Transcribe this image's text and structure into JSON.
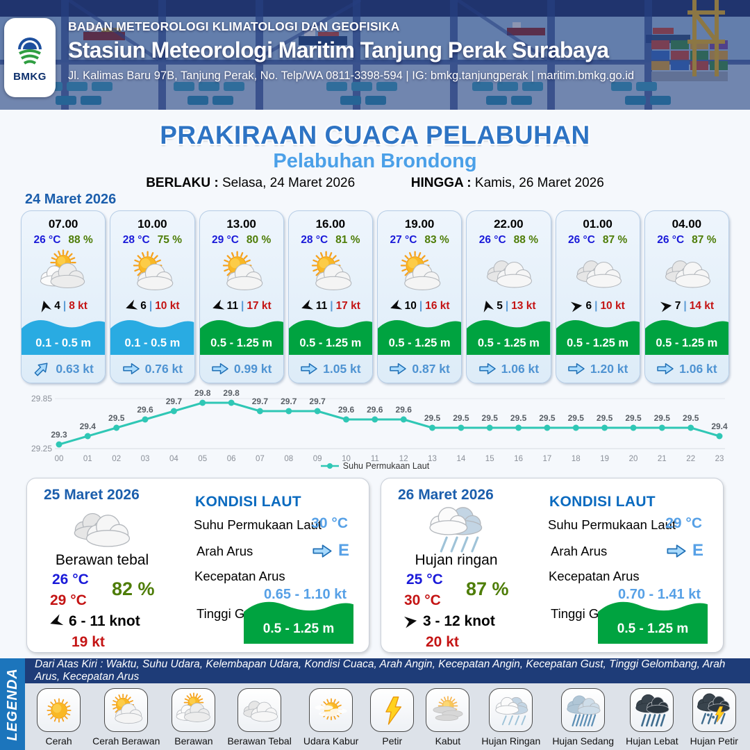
{
  "header": {
    "logo_text": "BMKG",
    "agency": "BADAN METEOROLOGI KLIMATOLOGI DAN GEOFISIKA",
    "station": "Stasiun Meteorologi Maritim Tanjung Perak Surabaya",
    "address": "Jl. Kalimas Baru 97B, Tanjung Perak, No. Telp/WA 0811-3398-594 | IG: bmkg.tanjungperak | maritim.bmkg.go.id"
  },
  "title": {
    "main": "PRAKIRAAN CUACA PELABUHAN",
    "subtitle": "Pelabuhan Brondong",
    "valid_from_label": "BERLAKU :",
    "valid_from": "Selasa, 24 Maret 2026",
    "valid_to_label": "HINGGA :",
    "valid_to": "Kamis, 26 Maret 2026"
  },
  "forecast_day1": {
    "date": "24 Maret 2026",
    "cards": [
      {
        "time": "07.00",
        "temp": "26 °C",
        "humidity": "88 %",
        "icon": "berawan",
        "wind_dir_deg": -105,
        "wind_speed": "4",
        "gust": "8 kt",
        "wave": "0.1 - 0.5 m",
        "wave_color": "#29abe2",
        "current_dir_deg": -45,
        "current": "0.63 kt"
      },
      {
        "time": "10.00",
        "temp": "28 °C",
        "humidity": "75 %",
        "icon": "cerah-berawan",
        "wind_dir_deg": 160,
        "wind_speed": "6",
        "gust": "10 kt",
        "wave": "0.1 - 0.5 m",
        "wave_color": "#29abe2",
        "current_dir_deg": 0,
        "current": "0.76 kt"
      },
      {
        "time": "13.00",
        "temp": "29 °C",
        "humidity": "80 %",
        "icon": "cerah-berawan",
        "wind_dir_deg": 160,
        "wind_speed": "11",
        "gust": "17 kt",
        "wave": "0.5 - 1.25 m",
        "wave_color": "#00a340",
        "current_dir_deg": 0,
        "current": "0.99 kt"
      },
      {
        "time": "16.00",
        "temp": "28 °C",
        "humidity": "81 %",
        "icon": "cerah-berawan",
        "wind_dir_deg": 160,
        "wind_speed": "11",
        "gust": "17 kt",
        "wave": "0.5 - 1.25 m",
        "wave_color": "#00a340",
        "current_dir_deg": 0,
        "current": "1.05 kt"
      },
      {
        "time": "19.00",
        "temp": "27 °C",
        "humidity": "83 %",
        "icon": "cerah-berawan",
        "wind_dir_deg": 160,
        "wind_speed": "10",
        "gust": "16 kt",
        "wave": "0.5 - 1.25 m",
        "wave_color": "#00a340",
        "current_dir_deg": 0,
        "current": "0.87 kt"
      },
      {
        "time": "22.00",
        "temp": "26 °C",
        "humidity": "88 %",
        "icon": "berawan-tebal",
        "wind_dir_deg": -105,
        "wind_speed": "5",
        "gust": "13 kt",
        "wave": "0.5 - 1.25 m",
        "wave_color": "#00a340",
        "current_dir_deg": 0,
        "current": "1.06 kt"
      },
      {
        "time": "01.00",
        "temp": "26 °C",
        "humidity": "87 %",
        "icon": "berawan-tebal",
        "wind_dir_deg": -8,
        "wind_speed": "6",
        "gust": "10 kt",
        "wave": "0.5 - 1.25 m",
        "wave_color": "#00a340",
        "current_dir_deg": 0,
        "current": "1.20 kt"
      },
      {
        "time": "04.00",
        "temp": "26 °C",
        "humidity": "87 %",
        "icon": "berawan-tebal",
        "wind_dir_deg": -8,
        "wind_speed": "7",
        "gust": "14 kt",
        "wave": "0.5 - 1.25 m",
        "wave_color": "#00a340",
        "current_dir_deg": 0,
        "current": "1.06 kt"
      }
    ]
  },
  "chart_data": {
    "type": "line",
    "x": [
      "00",
      "01",
      "02",
      "03",
      "04",
      "05",
      "06",
      "07",
      "08",
      "09",
      "10",
      "11",
      "12",
      "13",
      "14",
      "15",
      "16",
      "17",
      "18",
      "19",
      "20",
      "21",
      "22",
      "23"
    ],
    "values": [
      29.3,
      29.4,
      29.5,
      29.6,
      29.7,
      29.8,
      29.8,
      29.7,
      29.7,
      29.7,
      29.6,
      29.6,
      29.6,
      29.5,
      29.5,
      29.5,
      29.5,
      29.5,
      29.5,
      29.5,
      29.5,
      29.5,
      29.5,
      29.4
    ],
    "series_name": "Suhu Permukaan Laut",
    "ylim": [
      29.25,
      29.85
    ],
    "ytick_labels": [
      "29.25",
      "29.85"
    ],
    "color": "#2fc7b5",
    "grid": true,
    "legend_position": "bottom"
  },
  "day_panels": [
    {
      "date": "25 Maret 2026",
      "icon": "berawan-tebal",
      "condition": "Berawan tebal",
      "temp_min": "26 °C",
      "temp_max": "29 °C",
      "humidity": "82 %",
      "wind_dir_deg": 160,
      "wind_range": "6  - 11 knot",
      "gust": "19 kt",
      "sea": {
        "heading": "KONDISI LAUT",
        "sst_label": "Suhu Permukaan Laut",
        "sst": "30 °C",
        "current_dir_label": "Arah Arus",
        "current_dir": "E",
        "current_dir_deg": 0,
        "current_speed_label": "Kecepatan Arus",
        "current_speed": "0.65  - 1.10 kt",
        "wave_label": "Tinggi Gelombang",
        "wave": "0.5 - 1.25 m",
        "wave_color": "#00a340"
      }
    },
    {
      "date": "26 Maret 2026",
      "icon": "hujan-ringan",
      "condition": "Hujan ringan",
      "temp_min": "25 °C",
      "temp_max": "30 °C",
      "humidity": "87 %",
      "wind_dir_deg": -8,
      "wind_range": "3  - 12 knot",
      "gust": "20 kt",
      "sea": {
        "heading": "KONDISI LAUT",
        "sst_label": "Suhu Permukaan Laut",
        "sst": "29 °C",
        "current_dir_label": "Arah Arus",
        "current_dir": "E",
        "current_dir_deg": 0,
        "current_speed_label": "Kecepatan Arus",
        "current_speed": "0.70 - 1.41 kt",
        "wave_label": "Tinggi Gelombang",
        "wave": "0.5 - 1.25 m",
        "wave_color": "#00a340"
      }
    }
  ],
  "legend": {
    "vertical_label": "LEGENDA",
    "description": "Dari Atas Kiri : Waktu, Suhu Udara, Kelembapan Udara, Kondisi Cuaca, Arah Angin, Kecepatan Angin, Kecepatan Gust, Tinggi Gelombang, Arah Arus, Kecepatan Arus",
    "items": [
      {
        "label": "Cerah",
        "icon": "cerah"
      },
      {
        "label": "Cerah Berawan",
        "icon": "cerah-berawan"
      },
      {
        "label": "Berawan",
        "icon": "berawan"
      },
      {
        "label": "Berawan Tebal",
        "icon": "berawan-tebal"
      },
      {
        "label": "Udara Kabur",
        "icon": "udara-kabur"
      },
      {
        "label": "Petir",
        "icon": "petir"
      },
      {
        "label": "Kabut",
        "icon": "kabut"
      },
      {
        "label": "Hujan Ringan",
        "icon": "hujan-ringan"
      },
      {
        "label": "Hujan Sedang",
        "icon": "hujan-sedang"
      },
      {
        "label": "Hujan Lebat",
        "icon": "hujan-lebat"
      },
      {
        "label": "Hujan Petir",
        "icon": "hujan-petir"
      }
    ]
  },
  "colors": {
    "accent_blue": "#2e74c4",
    "light_blue": "#4ba0e8",
    "temp_blue": "#1a1ad9",
    "humidity_green": "#4e7d08",
    "gust_red": "#c41414",
    "wave_cyan": "#29abe2",
    "wave_green": "#00a340",
    "chart_teal": "#2fc7b5",
    "navy_bar": "#1e3c78",
    "legenda_strip": "#1c75bc"
  }
}
